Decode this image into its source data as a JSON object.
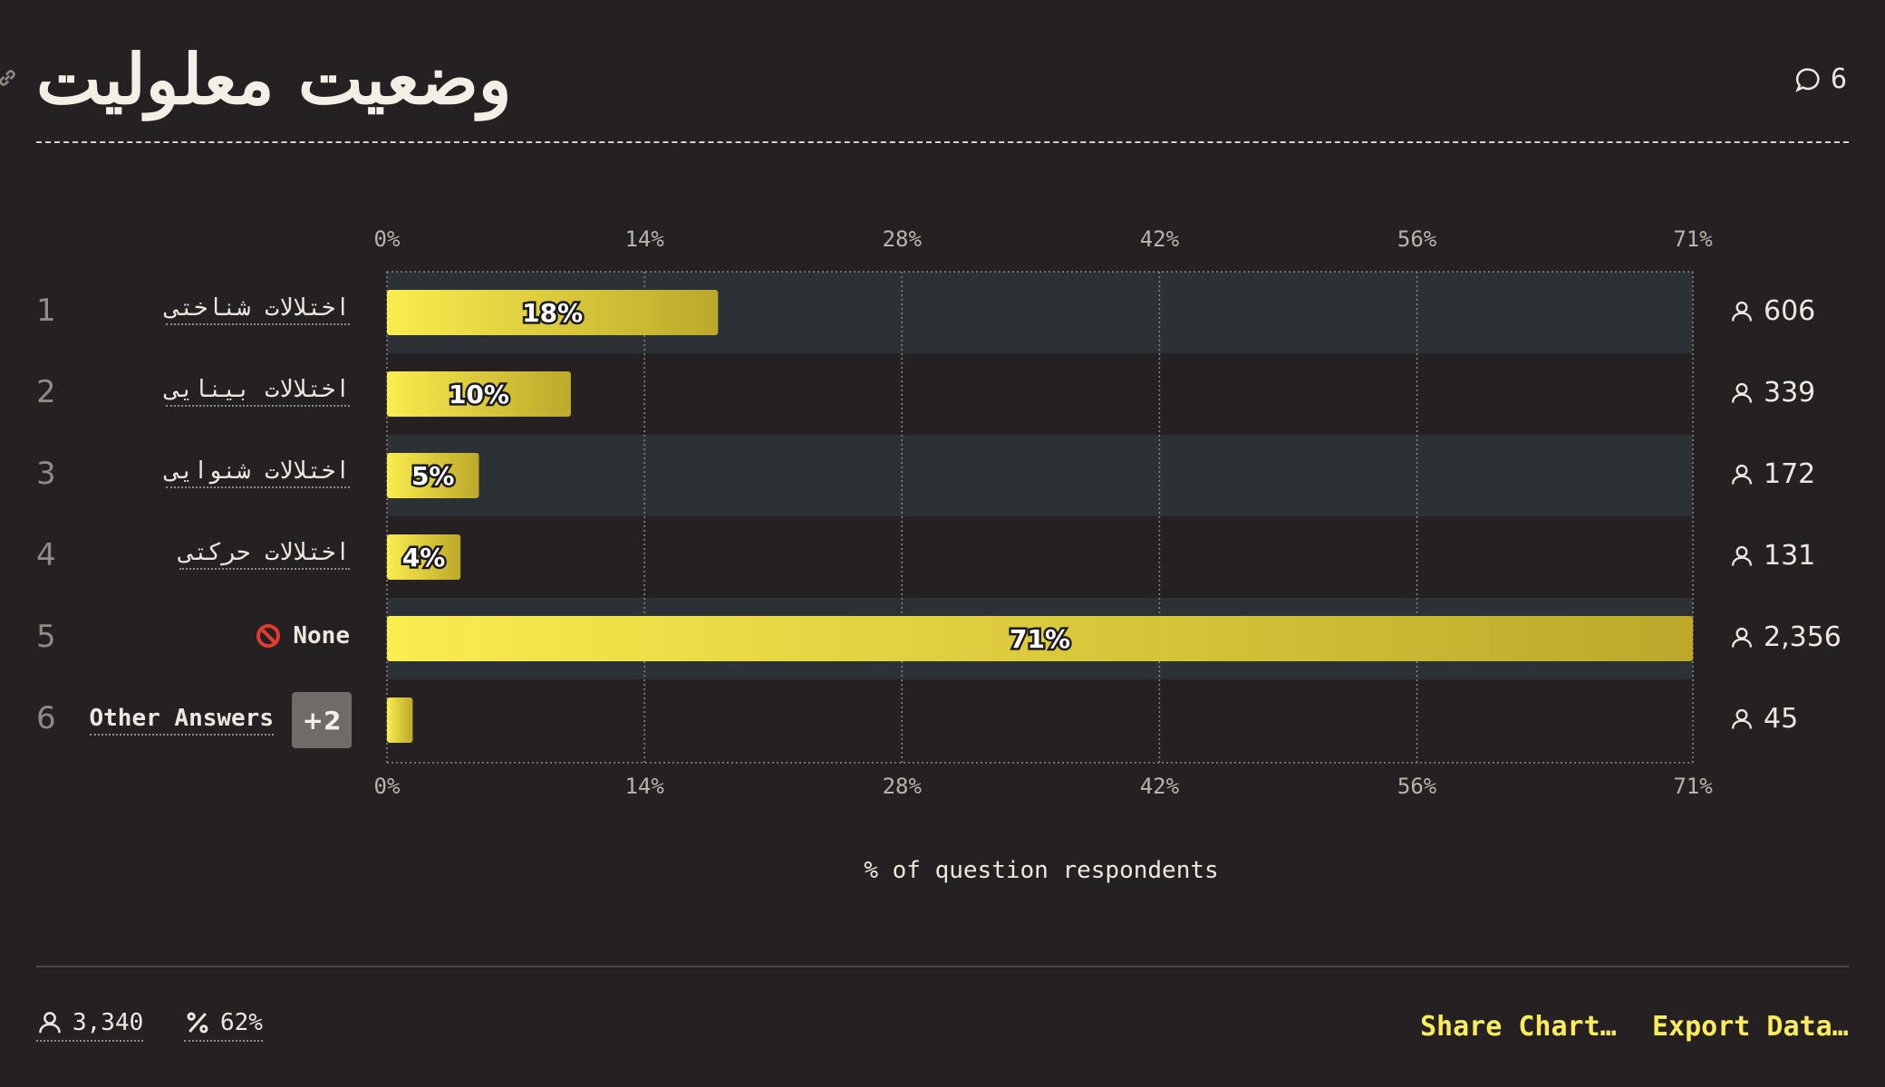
{
  "header": {
    "title": "وضعیت معلولیت",
    "comment_count": "6"
  },
  "chart_data": {
    "type": "bar",
    "orientation": "horizontal",
    "title": "وضعیت معلولیت",
    "xlabel": "% of question respondents",
    "xlim": [
      0,
      71
    ],
    "ticks": [
      "0%",
      "14%",
      "28%",
      "42%",
      "56%",
      "71%"
    ],
    "tick_values": [
      0,
      14,
      28,
      42,
      56,
      71
    ],
    "grid": true,
    "categories": [
      "اختلالات شناختی",
      "اختلالات بینایی",
      "اختلالات شنوایی",
      "اختلالات حرکتی",
      "None",
      "Other Answers"
    ],
    "values": [
      18,
      10,
      5,
      4,
      71,
      1.4
    ],
    "bar_labels": [
      "18%",
      "10%",
      "5%",
      "4%",
      "71%",
      ""
    ],
    "counts": [
      "606",
      "339",
      "172",
      "131",
      "2,356",
      "45"
    ],
    "rank": [
      "1",
      "2",
      "3",
      "4",
      "5",
      "6"
    ],
    "other_badge": "+2",
    "colors": {
      "bar_start": "#fbec4f",
      "bar_end": "#bca82a",
      "band": "#2b3134",
      "grid": "#8a8784"
    }
  },
  "footer": {
    "respondents": "3,340",
    "percent": "62%",
    "share_label": "Share Chart…",
    "export_label": "Export Data…"
  }
}
